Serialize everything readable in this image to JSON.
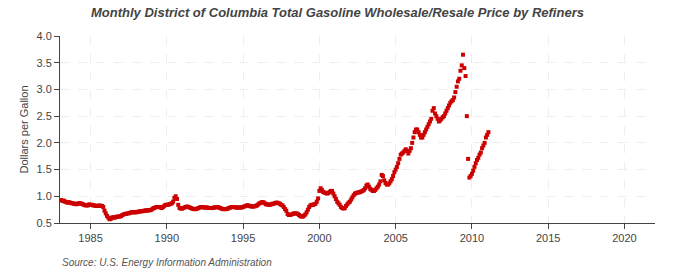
{
  "chart_data": {
    "type": "scatter",
    "title": "Monthly District of Columbia Total Gasoline Wholesale/Resale Price by Refiners",
    "ylabel": "Dollars per Gallon",
    "annotations": [
      "Source: U.S. Energy Information Administration"
    ],
    "color": "#cc0000",
    "marker": "square",
    "grid": true,
    "xlim": [
      1983,
      2022
    ],
    "ylim": [
      0.5,
      4.0
    ],
    "xticks": [
      1985,
      1990,
      1995,
      2000,
      2005,
      2010,
      2015,
      2020
    ],
    "yticks": [
      0.5,
      {
        "value": 1.0,
        "label": "1.0"
      },
      1.5,
      {
        "value": 2.0,
        "label": "2.0"
      },
      2.5,
      {
        "value": 3.0,
        "label": "3.0"
      },
      3.5,
      {
        "value": 4.0,
        "label": "4.0"
      }
    ],
    "x": [
      1983.0833333333333,
      1983.1666666666667,
      1983.25,
      1983.3333333333333,
      1983.4166666666667,
      1983.5,
      1983.5833333333333,
      1983.6666666666667,
      1983.75,
      1983.8333333333333,
      1983.9166666666667,
      1984,
      1984.0833333333333,
      1984.1666666666667,
      1984.25,
      1984.3333333333333,
      1984.4166666666667,
      1984.5,
      1984.5833333333333,
      1984.6666666666667,
      1984.75,
      1984.8333333333333,
      1984.9166666666667,
      1985,
      1985.0833333333333,
      1985.1666666666667,
      1985.25,
      1985.3333333333333,
      1985.4166666666667,
      1985.5,
      1985.5833333333333,
      1985.6666666666667,
      1985.75,
      1985.8333333333333,
      1985.9166666666667,
      1986,
      1986.0833333333333,
      1986.1666666666667,
      1986.25,
      1986.3333333333333,
      1986.4166666666667,
      1986.5,
      1986.5833333333333,
      1986.6666666666667,
      1986.75,
      1986.8333333333333,
      1986.9166666666667,
      1987,
      1987.0833333333333,
      1987.1666666666667,
      1987.25,
      1987.3333333333333,
      1987.4166666666667,
      1987.5,
      1987.5833333333333,
      1987.6666666666667,
      1987.75,
      1987.8333333333333,
      1987.9166666666667,
      1988,
      1988.0833333333333,
      1988.1666666666667,
      1988.25,
      1988.3333333333333,
      1988.4166666666667,
      1988.5,
      1988.5833333333333,
      1988.6666666666667,
      1988.75,
      1988.8333333333333,
      1988.9166666666667,
      1989,
      1989.0833333333333,
      1989.1666666666667,
      1989.25,
      1989.3333333333333,
      1989.4166666666667,
      1989.5,
      1989.5833333333333,
      1989.6666666666667,
      1989.75,
      1989.8333333333333,
      1989.9166666666667,
      1990,
      1990.0833333333333,
      1990.1666666666667,
      1990.25,
      1990.3333333333333,
      1990.4166666666667,
      1990.5,
      1990.5833333333333,
      1990.6666666666667,
      1990.75,
      1990.8333333333333,
      1990.9166666666667,
      1991,
      1991.0833333333333,
      1991.1666666666667,
      1991.25,
      1991.3333333333333,
      1991.4166666666667,
      1991.5,
      1991.5833333333333,
      1991.6666666666667,
      1991.75,
      1991.8333333333333,
      1991.9166666666667,
      1992,
      1992.0833333333333,
      1992.1666666666667,
      1992.25,
      1992.3333333333333,
      1992.4166666666667,
      1992.5,
      1992.5833333333333,
      1992.6666666666667,
      1992.75,
      1992.8333333333333,
      1992.9166666666667,
      1993,
      1993.0833333333333,
      1993.1666666666667,
      1993.25,
      1993.3333333333333,
      1993.4166666666667,
      1993.5,
      1993.5833333333333,
      1993.6666666666667,
      1993.75,
      1993.8333333333333,
      1993.9166666666667,
      1994,
      1994.0833333333333,
      1994.1666666666667,
      1994.25,
      1994.3333333333333,
      1994.4166666666667,
      1994.5,
      1994.5833333333333,
      1994.6666666666667,
      1994.75,
      1994.8333333333333,
      1994.9166666666667,
      1995,
      1995.0833333333333,
      1995.1666666666667,
      1995.25,
      1995.3333333333333,
      1995.4166666666667,
      1995.5,
      1995.5833333333333,
      1995.6666666666667,
      1995.75,
      1995.8333333333333,
      1995.9166666666667,
      1996,
      1996.0833333333333,
      1996.1666666666667,
      1996.25,
      1996.3333333333333,
      1996.4166666666667,
      1996.5,
      1996.5833333333333,
      1996.6666666666667,
      1996.75,
      1996.8333333333333,
      1996.9166666666667,
      1997,
      1997.0833333333333,
      1997.1666666666667,
      1997.25,
      1997.3333333333333,
      1997.4166666666667,
      1997.5,
      1997.5833333333333,
      1997.6666666666667,
      1997.75,
      1997.8333333333333,
      1997.9166666666667,
      1998,
      1998.0833333333333,
      1998.1666666666667,
      1998.25,
      1998.3333333333333,
      1998.4166666666667,
      1998.5,
      1998.5833333333333,
      1998.6666666666667,
      1998.75,
      1998.8333333333333,
      1998.9166666666667,
      1999,
      1999.0833333333333,
      1999.1666666666667,
      1999.25,
      1999.3333333333333,
      1999.4166666666667,
      1999.5,
      1999.5833333333333,
      1999.6666666666667,
      1999.75,
      1999.8333333333333,
      1999.9166666666667,
      2000,
      2000.0833333333333,
      2000.1666666666667,
      2000.25,
      2000.3333333333333,
      2000.4166666666667,
      2000.5,
      2000.5833333333333,
      2000.6666666666667,
      2000.75,
      2000.8333333333333,
      2000.9166666666667,
      2001,
      2001.0833333333333,
      2001.1666666666667,
      2001.25,
      2001.3333333333333,
      2001.4166666666667,
      2001.5,
      2001.5833333333333,
      2001.6666666666667,
      2001.75,
      2001.8333333333333,
      2001.9166666666667,
      2002,
      2002.0833333333333,
      2002.1666666666667,
      2002.25,
      2002.3333333333333,
      2002.4166666666667,
      2002.5,
      2002.5833333333333,
      2002.6666666666667,
      2002.75,
      2002.8333333333333,
      2002.9166666666667,
      2003,
      2003.0833333333333,
      2003.1666666666667,
      2003.25,
      2003.3333333333333,
      2003.4166666666667,
      2003.5,
      2003.5833333333333,
      2003.6666666666667,
      2003.75,
      2003.8333333333333,
      2003.9166666666667,
      2004,
      2004.0833333333333,
      2004.1666666666667,
      2004.25,
      2004.3333333333333,
      2004.4166666666667,
      2004.5,
      2004.5833333333333,
      2004.6666666666667,
      2004.75,
      2004.8333333333333,
      2004.9166666666667,
      2005,
      2005.0833333333333,
      2005.1666666666667,
      2005.25,
      2005.3333333333333,
      2005.4166666666667,
      2005.5,
      2005.5833333333333,
      2005.6666666666667,
      2005.75,
      2005.8333333333333,
      2005.9166666666667,
      2006,
      2006.0833333333333,
      2006.1666666666667,
      2006.25,
      2006.3333333333333,
      2006.4166666666667,
      2006.5,
      2006.5833333333333,
      2006.6666666666667,
      2006.75,
      2006.8333333333333,
      2006.9166666666667,
      2007,
      2007.0833333333333,
      2007.1666666666667,
      2007.25,
      2007.3333333333333,
      2007.4166666666667,
      2007.5,
      2007.5833333333333,
      2007.6666666666667,
      2007.75,
      2007.8333333333333,
      2007.9166666666667,
      2008,
      2008.0833333333333,
      2008.1666666666667,
      2008.25,
      2008.3333333333333,
      2008.4166666666667,
      2008.5,
      2008.5833333333333,
      2008.6666666666667,
      2008.75,
      2008.8333333333333,
      2008.9166666666667,
      2009,
      2009.0833333333333,
      2009.1666666666667,
      2009.25,
      2009.3333333333333,
      2009.4166666666667,
      2009.5,
      2009.5833333333333,
      2009.6666666666667,
      2009.75,
      2009.8333333333333,
      2009.9166666666667,
      2010,
      2010.0833333333333,
      2010.1666666666667,
      2010.25,
      2010.3333333333333,
      2010.4166666666667,
      2010.5,
      2010.5833333333333,
      2010.6666666666667,
      2010.75,
      2010.8333333333333,
      2010.9166666666667,
      2011,
      2011.0833333333333
    ],
    "values": [
      0.93,
      0.91,
      0.92,
      0.9,
      0.89,
      0.88,
      0.89,
      0.88,
      0.87,
      0.87,
      0.86,
      0.86,
      0.85,
      0.86,
      0.87,
      0.87,
      0.86,
      0.85,
      0.84,
      0.83,
      0.83,
      0.83,
      0.85,
      0.84,
      0.84,
      0.83,
      0.83,
      0.82,
      0.82,
      0.82,
      0.83,
      0.82,
      0.82,
      0.8,
      0.73,
      0.68,
      0.63,
      0.6,
      0.57,
      0.58,
      0.6,
      0.61,
      0.6,
      0.61,
      0.62,
      0.62,
      0.62,
      0.63,
      0.65,
      0.66,
      0.67,
      0.67,
      0.68,
      0.68,
      0.69,
      0.7,
      0.7,
      0.7,
      0.7,
      0.7,
      0.71,
      0.71,
      0.72,
      0.72,
      0.72,
      0.73,
      0.73,
      0.74,
      0.73,
      0.74,
      0.74,
      0.75,
      0.77,
      0.78,
      0.79,
      0.8,
      0.8,
      0.8,
      0.79,
      0.78,
      0.8,
      0.82,
      0.84,
      0.84,
      0.84,
      0.85,
      0.86,
      0.87,
      0.9,
      0.97,
      1.0,
      0.95,
      0.84,
      0.78,
      0.77,
      0.77,
      0.78,
      0.79,
      0.8,
      0.81,
      0.8,
      0.79,
      0.78,
      0.77,
      0.76,
      0.76,
      0.76,
      0.77,
      0.78,
      0.79,
      0.8,
      0.8,
      0.79,
      0.79,
      0.79,
      0.79,
      0.78,
      0.78,
      0.78,
      0.78,
      0.79,
      0.79,
      0.8,
      0.8,
      0.79,
      0.78,
      0.77,
      0.76,
      0.76,
      0.76,
      0.76,
      0.77,
      0.78,
      0.79,
      0.8,
      0.8,
      0.8,
      0.79,
      0.79,
      0.79,
      0.79,
      0.79,
      0.79,
      0.8,
      0.81,
      0.82,
      0.83,
      0.83,
      0.82,
      0.81,
      0.81,
      0.81,
      0.81,
      0.82,
      0.83,
      0.85,
      0.87,
      0.88,
      0.89,
      0.89,
      0.87,
      0.85,
      0.85,
      0.84,
      0.84,
      0.85,
      0.86,
      0.86,
      0.87,
      0.88,
      0.88,
      0.87,
      0.86,
      0.84,
      0.83,
      0.8,
      0.76,
      0.73,
      0.67,
      0.65,
      0.65,
      0.66,
      0.67,
      0.68,
      0.68,
      0.68,
      0.67,
      0.65,
      0.63,
      0.62,
      0.62,
      0.64,
      0.66,
      0.7,
      0.75,
      0.8,
      0.83,
      0.84,
      0.84,
      0.85,
      0.86,
      0.9,
      0.96,
      1.1,
      1.15,
      1.12,
      1.08,
      1.07,
      1.06,
      1.05,
      1.06,
      1.08,
      1.1,
      1.1,
      1.05,
      1.0,
      0.95,
      0.9,
      0.87,
      0.84,
      0.8,
      0.78,
      0.77,
      0.78,
      0.82,
      0.85,
      0.88,
      0.9,
      0.94,
      0.98,
      1.02,
      1.05,
      1.06,
      1.07,
      1.07,
      1.08,
      1.09,
      1.1,
      1.12,
      1.15,
      1.2,
      1.22,
      1.18,
      1.14,
      1.12,
      1.1,
      1.1,
      1.12,
      1.15,
      1.18,
      1.22,
      1.28,
      1.4,
      1.38,
      1.3,
      1.25,
      1.22,
      1.22,
      1.24,
      1.28,
      1.32,
      1.38,
      1.45,
      1.5,
      1.55,
      1.62,
      1.7,
      1.78,
      1.8,
      1.82,
      1.85,
      1.88,
      1.85,
      1.8,
      1.85,
      1.9,
      2.0,
      2.1,
      2.2,
      2.25,
      2.25,
      2.2,
      2.15,
      2.1,
      2.1,
      2.15,
      2.2,
      2.25,
      2.3,
      2.35,
      2.4,
      2.45,
      2.6,
      2.65,
      2.55,
      2.5,
      2.45,
      2.4,
      2.42,
      2.45,
      2.48,
      2.5,
      2.55,
      2.6,
      2.65,
      2.7,
      2.75,
      2.78,
      2.8,
      2.85,
      2.95,
      3.05,
      3.15,
      3.2,
      3.35,
      3.45,
      3.65,
      3.4,
      3.25,
      2.5,
      1.7,
      1.35,
      1.38,
      1.42,
      1.48,
      1.55,
      1.62,
      1.68,
      1.72,
      1.78,
      1.82,
      1.9,
      1.95,
      2.0,
      2.1,
      2.15,
      2.2
    ]
  }
}
